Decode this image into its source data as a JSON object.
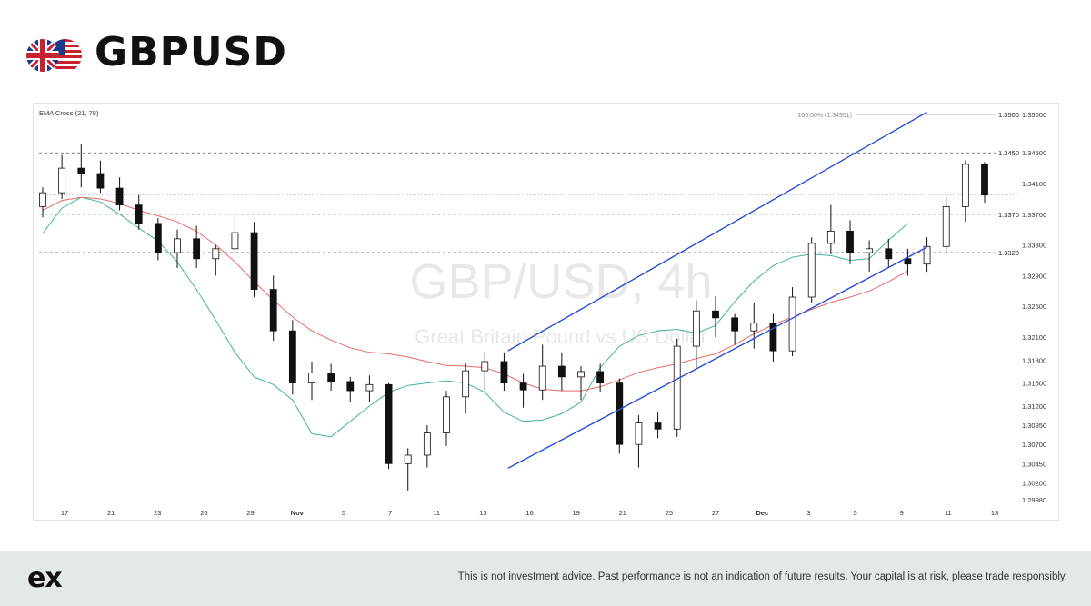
{
  "header": {
    "title": "GBPUSD",
    "flags": [
      "uk-flag",
      "us-flag"
    ]
  },
  "footer": {
    "logo": "ex",
    "disclaimer": "This is not investment advice. Past performance is not an indication of future results. Your capital is at risk, please trade responsibly."
  },
  "chart_data": {
    "type": "candlestick",
    "indicator_label": "EMA Cross (21, 78)",
    "watermark": {
      "symbol": "GBP/USD, 4h",
      "description": "Great Britain Pound vs US Dollar"
    },
    "grid": false,
    "y_axis": {
      "position": "right",
      "ticks": [
        "1.35000",
        "1.34500",
        "1.34100",
        "1.33700",
        "1.33300",
        "1.32900",
        "1.32500",
        "1.32100",
        "1.31800",
        "1.31500",
        "1.31200",
        "1.30950",
        "1.30700",
        "1.30450",
        "1.30200",
        "1.29980"
      ],
      "ylim": [
        1.2998,
        1.35
      ]
    },
    "x_axis": {
      "ticks": [
        {
          "label": "17",
          "bold": false
        },
        {
          "label": "21",
          "bold": false
        },
        {
          "label": "23",
          "bold": false
        },
        {
          "label": "26",
          "bold": false
        },
        {
          "label": "29",
          "bold": false
        },
        {
          "label": "Nov",
          "bold": true
        },
        {
          "label": "5",
          "bold": false
        },
        {
          "label": "7",
          "bold": false
        },
        {
          "label": "11",
          "bold": false
        },
        {
          "label": "13",
          "bold": false
        },
        {
          "label": "16",
          "bold": false
        },
        {
          "label": "19",
          "bold": false
        },
        {
          "label": "21",
          "bold": false
        },
        {
          "label": "25",
          "bold": false
        },
        {
          "label": "27",
          "bold": false
        },
        {
          "label": "Dec",
          "bold": true
        },
        {
          "label": "3",
          "bold": false
        },
        {
          "label": "5",
          "bold": false
        },
        {
          "label": "9",
          "bold": false
        },
        {
          "label": "11",
          "bold": false
        },
        {
          "label": "13",
          "bold": false
        }
      ]
    },
    "horizontal_levels": [
      {
        "value": 1.35,
        "label": "1.3500",
        "style": "solid",
        "note": "100.00% (1.34951)"
      },
      {
        "value": 1.345,
        "label": "1.3450",
        "style": "dashed"
      },
      {
        "value": 1.337,
        "label": "1.3370",
        "style": "dashed"
      },
      {
        "value": 1.332,
        "label": "1.3320",
        "style": "dashed"
      }
    ],
    "current_price": 1.3395,
    "channel": {
      "color": "#2a4fd8",
      "upper": [
        {
          "x": 24.2,
          "y": 1.3192
        },
        {
          "x": 46.0,
          "y": 1.3503
        }
      ],
      "lower": [
        {
          "x": 24.2,
          "y": 1.3039
        },
        {
          "x": 46.0,
          "y": 1.3327
        }
      ]
    },
    "series": [
      {
        "name": "EMA 21",
        "color": "#44b39c",
        "points": [
          [
            0,
            1.3345
          ],
          [
            1,
            1.3378
          ],
          [
            2,
            1.3392
          ],
          [
            3,
            1.3386
          ],
          [
            4,
            1.337
          ],
          [
            5,
            1.3352
          ],
          [
            6,
            1.3335
          ],
          [
            7,
            1.3308
          ],
          [
            8,
            1.3272
          ],
          [
            9,
            1.3232
          ],
          [
            10,
            1.319
          ],
          [
            11,
            1.3158
          ],
          [
            12,
            1.3148
          ],
          [
            13,
            1.3128
          ],
          [
            14,
            1.3084
          ],
          [
            15,
            1.308
          ],
          [
            16,
            1.31
          ],
          [
            17,
            1.312
          ],
          [
            18,
            1.3138
          ],
          [
            19,
            1.3147
          ],
          [
            20,
            1.315
          ],
          [
            21,
            1.3153
          ],
          [
            22,
            1.315
          ],
          [
            23,
            1.3138
          ],
          [
            24,
            1.3112
          ],
          [
            25,
            1.31
          ],
          [
            26,
            1.3102
          ],
          [
            27,
            1.311
          ],
          [
            28,
            1.3125
          ],
          [
            29,
            1.317
          ],
          [
            30,
            1.3198
          ],
          [
            31,
            1.3212
          ],
          [
            32,
            1.3218
          ],
          [
            33,
            1.322
          ],
          [
            34,
            1.3215
          ],
          [
            35,
            1.3225
          ],
          [
            36,
            1.3256
          ],
          [
            37,
            1.3283
          ],
          [
            38,
            1.3303
          ],
          [
            39,
            1.3314
          ],
          [
            40,
            1.3318
          ],
          [
            41,
            1.3316
          ],
          [
            42,
            1.331
          ],
          [
            43,
            1.3312
          ],
          [
            44,
            1.3336
          ],
          [
            45,
            1.3358
          ]
        ]
      },
      {
        "name": "EMA 78",
        "color": "#e86a6a",
        "points": [
          [
            0,
            1.3375
          ],
          [
            1,
            1.3388
          ],
          [
            2,
            1.3392
          ],
          [
            3,
            1.339
          ],
          [
            4,
            1.3384
          ],
          [
            5,
            1.3375
          ],
          [
            6,
            1.3368
          ],
          [
            7,
            1.336
          ],
          [
            8,
            1.3348
          ],
          [
            9,
            1.333
          ],
          [
            10,
            1.3308
          ],
          [
            11,
            1.3282
          ],
          [
            12,
            1.3258
          ],
          [
            13,
            1.3236
          ],
          [
            14,
            1.3218
          ],
          [
            15,
            1.3206
          ],
          [
            16,
            1.3196
          ],
          [
            17,
            1.319
          ],
          [
            18,
            1.3188
          ],
          [
            19,
            1.3184
          ],
          [
            20,
            1.3178
          ],
          [
            21,
            1.3173
          ],
          [
            22,
            1.3172
          ],
          [
            23,
            1.317
          ],
          [
            24,
            1.3162
          ],
          [
            25,
            1.315
          ],
          [
            26,
            1.3142
          ],
          [
            27,
            1.314
          ],
          [
            28,
            1.314
          ],
          [
            29,
            1.3145
          ],
          [
            30,
            1.3154
          ],
          [
            31,
            1.3164
          ],
          [
            32,
            1.317
          ],
          [
            33,
            1.3175
          ],
          [
            34,
            1.3182
          ],
          [
            35,
            1.3188
          ],
          [
            36,
            1.32
          ],
          [
            37,
            1.3214
          ],
          [
            38,
            1.3226
          ],
          [
            39,
            1.3236
          ],
          [
            40,
            1.3246
          ],
          [
            41,
            1.3255
          ],
          [
            42,
            1.3262
          ],
          [
            43,
            1.327
          ],
          [
            44,
            1.3282
          ],
          [
            45,
            1.3296
          ]
        ]
      }
    ],
    "candles": [
      {
        "x": 0,
        "o": 1.338,
        "h": 1.3405,
        "l": 1.3366,
        "c": 1.3398
      },
      {
        "x": 1,
        "o": 1.3398,
        "h": 1.3447,
        "l": 1.339,
        "c": 1.343
      },
      {
        "x": 2,
        "o": 1.343,
        "h": 1.3462,
        "l": 1.3405,
        "c": 1.3423
      },
      {
        "x": 3,
        "o": 1.3423,
        "h": 1.344,
        "l": 1.3398,
        "c": 1.3404
      },
      {
        "x": 4,
        "o": 1.3404,
        "h": 1.3418,
        "l": 1.3375,
        "c": 1.3382
      },
      {
        "x": 5,
        "o": 1.3382,
        "h": 1.3395,
        "l": 1.335,
        "c": 1.3358
      },
      {
        "x": 6,
        "o": 1.3358,
        "h": 1.3365,
        "l": 1.331,
        "c": 1.332
      },
      {
        "x": 7,
        "o": 1.332,
        "h": 1.335,
        "l": 1.33,
        "c": 1.3338
      },
      {
        "x": 8,
        "o": 1.3338,
        "h": 1.3355,
        "l": 1.33,
        "c": 1.3312
      },
      {
        "x": 9,
        "o": 1.3312,
        "h": 1.333,
        "l": 1.329,
        "c": 1.3325
      },
      {
        "x": 10,
        "o": 1.3325,
        "h": 1.3368,
        "l": 1.3315,
        "c": 1.3346
      },
      {
        "x": 11,
        "o": 1.3346,
        "h": 1.336,
        "l": 1.3262,
        "c": 1.3272
      },
      {
        "x": 12,
        "o": 1.3272,
        "h": 1.329,
        "l": 1.3205,
        "c": 1.3218
      },
      {
        "x": 13,
        "o": 1.3218,
        "h": 1.3232,
        "l": 1.3135,
        "c": 1.315
      },
      {
        "x": 14,
        "o": 1.315,
        "h": 1.3178,
        "l": 1.3128,
        "c": 1.3163
      },
      {
        "x": 15,
        "o": 1.3163,
        "h": 1.3175,
        "l": 1.314,
        "c": 1.3152
      },
      {
        "x": 16,
        "o": 1.3152,
        "h": 1.3158,
        "l": 1.3125,
        "c": 1.314
      },
      {
        "x": 17,
        "o": 1.314,
        "h": 1.316,
        "l": 1.3125,
        "c": 1.3148
      },
      {
        "x": 18,
        "o": 1.3148,
        "h": 1.315,
        "l": 1.3038,
        "c": 1.3045
      },
      {
        "x": 19,
        "o": 1.3045,
        "h": 1.3065,
        "l": 1.301,
        "c": 1.3056
      },
      {
        "x": 20,
        "o": 1.3056,
        "h": 1.3095,
        "l": 1.304,
        "c": 1.3085
      },
      {
        "x": 21,
        "o": 1.3085,
        "h": 1.314,
        "l": 1.3068,
        "c": 1.3132
      },
      {
        "x": 22,
        "o": 1.3132,
        "h": 1.3176,
        "l": 1.311,
        "c": 1.3166
      },
      {
        "x": 23,
        "o": 1.3166,
        "h": 1.319,
        "l": 1.314,
        "c": 1.3178
      },
      {
        "x": 24,
        "o": 1.3178,
        "h": 1.319,
        "l": 1.314,
        "c": 1.315
      },
      {
        "x": 25,
        "o": 1.315,
        "h": 1.3162,
        "l": 1.3118,
        "c": 1.3141
      },
      {
        "x": 26,
        "o": 1.3141,
        "h": 1.32,
        "l": 1.3128,
        "c": 1.3172
      },
      {
        "x": 27,
        "o": 1.3172,
        "h": 1.319,
        "l": 1.314,
        "c": 1.3158
      },
      {
        "x": 28,
        "o": 1.3158,
        "h": 1.3172,
        "l": 1.3128,
        "c": 1.3165
      },
      {
        "x": 29,
        "o": 1.3165,
        "h": 1.3175,
        "l": 1.3138,
        "c": 1.315
      },
      {
        "x": 30,
        "o": 1.315,
        "h": 1.3156,
        "l": 1.3058,
        "c": 1.307
      },
      {
        "x": 31,
        "o": 1.307,
        "h": 1.3108,
        "l": 1.304,
        "c": 1.3098
      },
      {
        "x": 32,
        "o": 1.3098,
        "h": 1.3112,
        "l": 1.3078,
        "c": 1.309
      },
      {
        "x": 33,
        "o": 1.309,
        "h": 1.3208,
        "l": 1.308,
        "c": 1.3198
      },
      {
        "x": 34,
        "o": 1.3198,
        "h": 1.3258,
        "l": 1.317,
        "c": 1.3244
      },
      {
        "x": 35,
        "o": 1.3244,
        "h": 1.3263,
        "l": 1.321,
        "c": 1.3235
      },
      {
        "x": 36,
        "o": 1.3235,
        "h": 1.324,
        "l": 1.32,
        "c": 1.3218
      },
      {
        "x": 37,
        "o": 1.3218,
        "h": 1.3255,
        "l": 1.3195,
        "c": 1.3228
      },
      {
        "x": 38,
        "o": 1.3228,
        "h": 1.324,
        "l": 1.3178,
        "c": 1.3192
      },
      {
        "x": 39,
        "o": 1.3192,
        "h": 1.3275,
        "l": 1.3185,
        "c": 1.3262
      },
      {
        "x": 40,
        "o": 1.3262,
        "h": 1.334,
        "l": 1.3255,
        "c": 1.3332
      },
      {
        "x": 41,
        "o": 1.3332,
        "h": 1.3382,
        "l": 1.3318,
        "c": 1.3348
      },
      {
        "x": 42,
        "o": 1.3348,
        "h": 1.3362,
        "l": 1.3305,
        "c": 1.332
      },
      {
        "x": 43,
        "o": 1.332,
        "h": 1.3336,
        "l": 1.3295,
        "c": 1.3325
      },
      {
        "x": 44,
        "o": 1.3325,
        "h": 1.3338,
        "l": 1.33,
        "c": 1.3312
      },
      {
        "x": 45,
        "o": 1.3312,
        "h": 1.3325,
        "l": 1.329,
        "c": 1.3305
      },
      {
        "x": 46,
        "o": 1.3305,
        "h": 1.334,
        "l": 1.3295,
        "c": 1.3328
      },
      {
        "x": 47,
        "o": 1.3328,
        "h": 1.3392,
        "l": 1.332,
        "c": 1.338
      },
      {
        "x": 48,
        "o": 1.338,
        "h": 1.344,
        "l": 1.336,
        "c": 1.3435
      },
      {
        "x": 49,
        "o": 1.3435,
        "h": 1.3438,
        "l": 1.3385,
        "c": 1.3395
      }
    ]
  }
}
